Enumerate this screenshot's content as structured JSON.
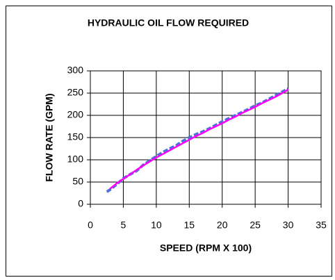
{
  "chart_data": {
    "type": "line",
    "title": "HYDRAULIC OIL FLOW REQUIRED",
    "x_label": "SPEED (RPM X 100)",
    "y_label": "FLOW RATE (GPM)",
    "x": [
      2.5,
      3,
      4,
      5,
      6,
      7,
      8,
      9,
      10,
      11,
      12,
      13,
      14,
      15,
      16,
      17,
      18,
      19,
      20,
      21,
      22,
      23,
      24,
      25,
      26,
      27,
      28,
      29,
      30
    ],
    "series": [
      {
        "color": "#4a72d8",
        "values": [
          28,
          33,
          45,
          58,
          67,
          75,
          88,
          98,
          108,
          117,
          125,
          132,
          142,
          150,
          157,
          163,
          170,
          178,
          186,
          193,
          200,
          207,
          214,
          222,
          228,
          236,
          244,
          252,
          260
        ]
      },
      {
        "color": "#ff00ff",
        "values": [
          null,
          35,
          47,
          57,
          67,
          77,
          87,
          96,
          105,
          113,
          121,
          129,
          137,
          145,
          153,
          160,
          168,
          175,
          182,
          190,
          197,
          205,
          212,
          219,
          227,
          234,
          241,
          249,
          258
        ]
      }
    ],
    "xlim": [
      0,
      35
    ],
    "xticks": [
      0,
      5,
      10,
      15,
      20,
      25,
      30,
      35
    ],
    "ylim": [
      0,
      300
    ],
    "yticks": [
      0,
      50,
      100,
      150,
      200,
      250,
      300
    ],
    "grid": true
  }
}
